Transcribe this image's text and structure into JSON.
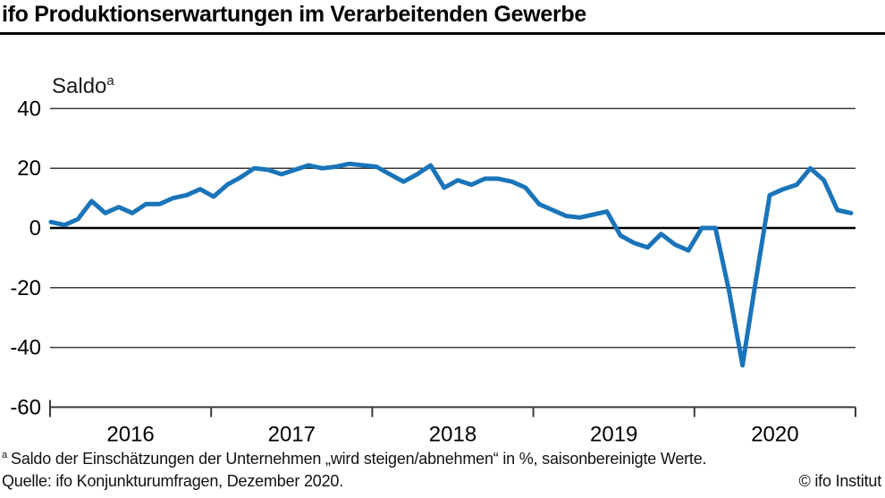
{
  "header": {
    "title": "ifo Produktionserwartungen im Verarbeitenden Gewerbe"
  },
  "chart": {
    "y_axis_title": {
      "text": "Saldo",
      "sup": "a"
    }
  },
  "chart_data": {
    "type": "line",
    "title": "ifo Produktionserwartungen im Verarbeitenden Gewerbe",
    "ylabel": "Saldo",
    "xlabel": "",
    "grid": "horizontal",
    "legend_position": "none",
    "line_color": "#1a74b9",
    "ylim": [
      -60,
      44
    ],
    "y_ticks": [
      40,
      20,
      0,
      -20,
      -40,
      -60
    ],
    "x_year_labels": [
      "2016",
      "2017",
      "2018",
      "2019",
      "2020"
    ],
    "x": [
      "2016-01",
      "2016-02",
      "2016-03",
      "2016-04",
      "2016-05",
      "2016-06",
      "2016-07",
      "2016-08",
      "2016-09",
      "2016-10",
      "2016-11",
      "2016-12",
      "2017-01",
      "2017-02",
      "2017-03",
      "2017-04",
      "2017-05",
      "2017-06",
      "2017-07",
      "2017-08",
      "2017-09",
      "2017-10",
      "2017-11",
      "2017-12",
      "2018-01",
      "2018-02",
      "2018-03",
      "2018-04",
      "2018-05",
      "2018-06",
      "2018-07",
      "2018-08",
      "2018-09",
      "2018-10",
      "2018-11",
      "2018-12",
      "2019-01",
      "2019-02",
      "2019-03",
      "2019-04",
      "2019-05",
      "2019-06",
      "2019-07",
      "2019-08",
      "2019-09",
      "2019-10",
      "2019-11",
      "2019-12",
      "2020-01",
      "2020-02",
      "2020-03",
      "2020-04",
      "2020-05",
      "2020-06",
      "2020-07",
      "2020-08",
      "2020-09",
      "2020-10",
      "2020-11",
      "2020-12"
    ],
    "values": [
      2,
      1,
      3,
      9,
      5,
      7,
      5,
      8,
      8,
      10,
      11,
      13,
      10.5,
      14.5,
      17,
      20,
      19.5,
      18,
      19.5,
      21,
      20,
      20.5,
      21.5,
      21,
      20.5,
      18,
      15.5,
      18,
      21,
      13.5,
      16,
      14.5,
      16.5,
      16.5,
      15.5,
      13.5,
      8,
      6,
      4,
      3.5,
      4.5,
      5.5,
      -2.5,
      -5,
      -6.5,
      -2,
      -5.5,
      -7.5,
      0,
      0,
      -21,
      -46,
      -17,
      11,
      13,
      14.5,
      20,
      16,
      6,
      5
    ]
  },
  "footnotes": {
    "note_sup": "a",
    "note_text": "Saldo der Einschätzungen der Unternehmen „wird steigen/abnehmen“ in %, saisonbereinigte Werte.",
    "source": "Quelle: ifo Konjunkturumfragen, Dezember 2020.",
    "copyright": "© ifo Institut"
  }
}
